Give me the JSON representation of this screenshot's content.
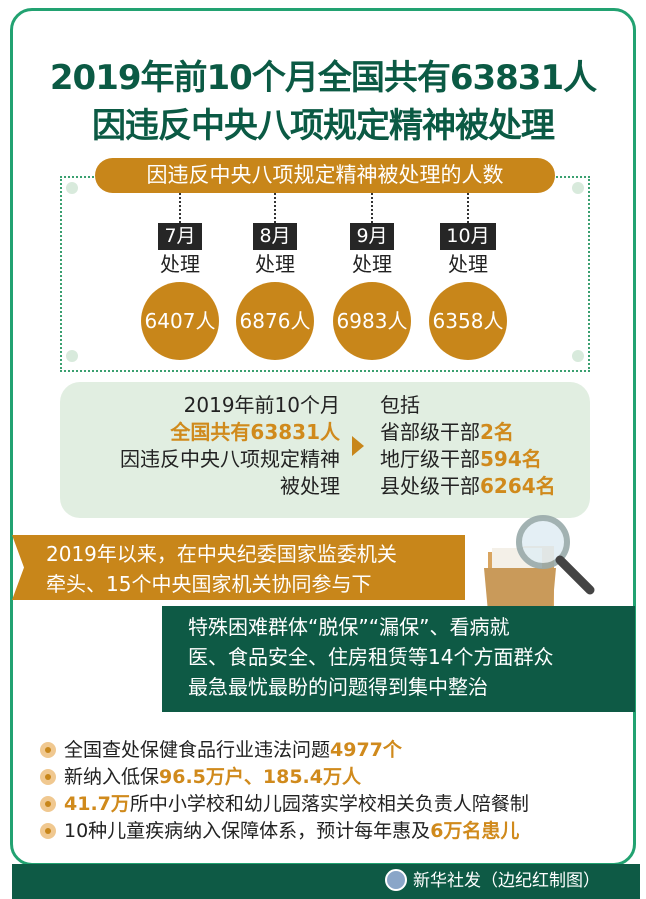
{
  "title": {
    "line1": "2019年前10个月全国共有63831人",
    "line2": "因违反中央八项规定精神被处理"
  },
  "monthly": {
    "header": "因违反中央八项规定精神被处理的人数",
    "action_label": "处理",
    "items": [
      {
        "month": "7月",
        "count": "6407人"
      },
      {
        "month": "8月",
        "count": "6876人"
      },
      {
        "month": "9月",
        "count": "6983人"
      },
      {
        "month": "10月",
        "count": "6358人"
      }
    ]
  },
  "summary": {
    "left": [
      "2019年前10个月",
      "全国共有63831人",
      "因违反中央八项规定精神",
      "被处理"
    ],
    "right_title": "包括",
    "right": [
      {
        "label": "省部级干部",
        "value": "2名"
      },
      {
        "label": "地厅级干部",
        "value": "594名"
      },
      {
        "label": "县处级干部",
        "value": "6264名"
      }
    ]
  },
  "banner": {
    "line1": "2019年以来，在中央纪委国家监委机关",
    "line2": "牵头、15个中央国家机关协同参与下"
  },
  "green_box": {
    "line1": "特殊困难群体“脱保”“漏保”、看病就",
    "line2": "医、食品安全、住房租赁等14个方面群众",
    "line3": "最急最忧最盼的问题得到集中整治"
  },
  "bullets": [
    {
      "pre": "全国查处保健食品行业违法问题",
      "hl": "4977个",
      "post": ""
    },
    {
      "pre": "新纳入低保",
      "hl": "96.5万户、185.4万人",
      "post": ""
    },
    {
      "pre": "",
      "hl": "41.7万",
      "post": "所中小学校和幼儿园落实学校相关负责人陪餐制"
    },
    {
      "pre": "10种儿童疾病纳入保障体系，预计每年惠及",
      "hl": "6万名患儿",
      "post": ""
    }
  ],
  "footer": {
    "credit": "新华社发（边纪红制图）"
  },
  "colors": {
    "accent": "#c8861a",
    "dark_green": "#0e5a45",
    "frame": "#22a271"
  }
}
